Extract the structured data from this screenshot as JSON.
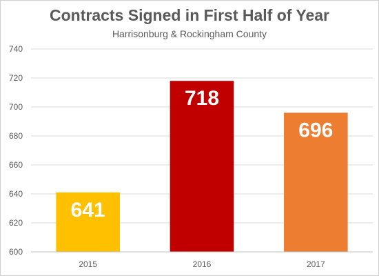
{
  "chart_data": {
    "type": "bar",
    "title": "Contracts Signed in First Half of Year",
    "subtitle": "Harrisonburg & Rockingham County",
    "xlabel": "",
    "ylabel": "",
    "categories": [
      "2015",
      "2016",
      "2017"
    ],
    "values": [
      641,
      718,
      696
    ],
    "data_labels": [
      "641",
      "718",
      "696"
    ],
    "colors": [
      "#ffc000",
      "#c00000",
      "#ed7d31"
    ],
    "ylim": [
      600,
      740
    ],
    "yticks": [
      600,
      620,
      640,
      660,
      680,
      700,
      720,
      740
    ],
    "grid": true,
    "legend": "none"
  }
}
